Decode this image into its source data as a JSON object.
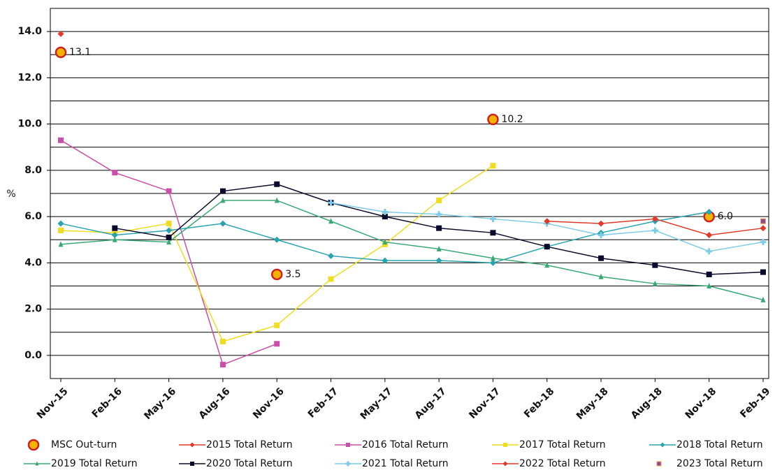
{
  "chart_data": {
    "type": "line",
    "y_label": "%",
    "categories": [
      "Nov-15",
      "Feb-16",
      "May-16",
      "Aug-16",
      "Nov-16",
      "Feb-17",
      "May-17",
      "Aug-17",
      "Nov-17",
      "Feb-18",
      "May-18",
      "Aug-18",
      "Nov-18",
      "Feb-19"
    ],
    "ylim": [
      -1,
      15
    ],
    "yticks": [
      {
        "value": 0,
        "label": "0.0"
      },
      {
        "value": 2,
        "label": "2.0"
      },
      {
        "value": 4,
        "label": "4.0"
      },
      {
        "value": 6,
        "label": "6.0"
      },
      {
        "value": 8,
        "label": "8.0"
      },
      {
        "value": 10,
        "label": "10.0"
      },
      {
        "value": 12,
        "label": "12.0"
      },
      {
        "value": 14,
        "label": "14.0"
      }
    ],
    "grid": true,
    "series": [
      {
        "name": "MSC Out-turn",
        "color": "#f2b400",
        "stroke": "#d02020",
        "marker": "circle",
        "line": false,
        "values": [
          13.1,
          null,
          null,
          null,
          3.5,
          null,
          null,
          null,
          10.2,
          null,
          null,
          null,
          6.0,
          null
        ],
        "value_labels": [
          "13.1",
          null,
          null,
          null,
          "3.5",
          null,
          null,
          null,
          "10.2",
          null,
          null,
          null,
          "6.0",
          null
        ]
      },
      {
        "name": "2015 Total Return",
        "color": "#e8382a",
        "marker": "diamond",
        "values": [
          13.9,
          null,
          null,
          null,
          null,
          null,
          null,
          null,
          null,
          null,
          null,
          null,
          null,
          null
        ]
      },
      {
        "name": "2016 Total Return",
        "color": "#c94fa8",
        "marker": "square",
        "values": [
          9.3,
          7.9,
          7.1,
          -0.4,
          0.5,
          null,
          null,
          null,
          null,
          null,
          null,
          null,
          null,
          null
        ]
      },
      {
        "name": "2017 Total Return",
        "color": "#f0dc20",
        "marker": "square",
        "values": [
          5.4,
          5.3,
          5.7,
          0.6,
          1.3,
          3.3,
          4.8,
          6.7,
          8.2,
          null,
          null,
          null,
          null,
          null
        ]
      },
      {
        "name": "2018 Total Return",
        "color": "#2aa3b0",
        "marker": "diamond",
        "values": [
          5.7,
          5.2,
          5.4,
          5.7,
          5.0,
          4.3,
          4.1,
          4.1,
          4.0,
          4.7,
          5.3,
          5.8,
          6.2,
          null
        ]
      },
      {
        "name": "2019 Total Return",
        "color": "#3aa874",
        "marker": "triangle",
        "values": [
          4.8,
          5.0,
          4.9,
          6.7,
          6.7,
          5.8,
          4.9,
          4.6,
          4.2,
          3.9,
          3.4,
          3.1,
          3.0,
          2.4
        ]
      },
      {
        "name": "2020 Total Return",
        "color": "#0a0a2a",
        "marker": "square",
        "values": [
          null,
          5.5,
          5.1,
          7.1,
          7.4,
          6.6,
          6.0,
          5.5,
          5.3,
          4.7,
          4.2,
          3.9,
          3.5,
          3.6
        ]
      },
      {
        "name": "2021 Total Return",
        "color": "#7ecbe8",
        "marker": "cross",
        "values": [
          null,
          null,
          null,
          null,
          null,
          6.6,
          6.2,
          6.1,
          5.9,
          5.7,
          5.2,
          5.4,
          4.5,
          4.9
        ]
      },
      {
        "name": "2022 Total Return",
        "color": "#e03a2a",
        "marker": "diamond",
        "values": [
          null,
          null,
          null,
          null,
          null,
          null,
          null,
          null,
          null,
          5.8,
          5.7,
          5.9,
          5.2,
          5.5
        ]
      },
      {
        "name": "2023 Total Return",
        "color": "#8a4a9a",
        "stroke": "#f0a050",
        "marker": "square",
        "line": false,
        "values": [
          null,
          null,
          null,
          null,
          null,
          null,
          null,
          null,
          null,
          null,
          null,
          null,
          null,
          5.8
        ]
      }
    ]
  }
}
